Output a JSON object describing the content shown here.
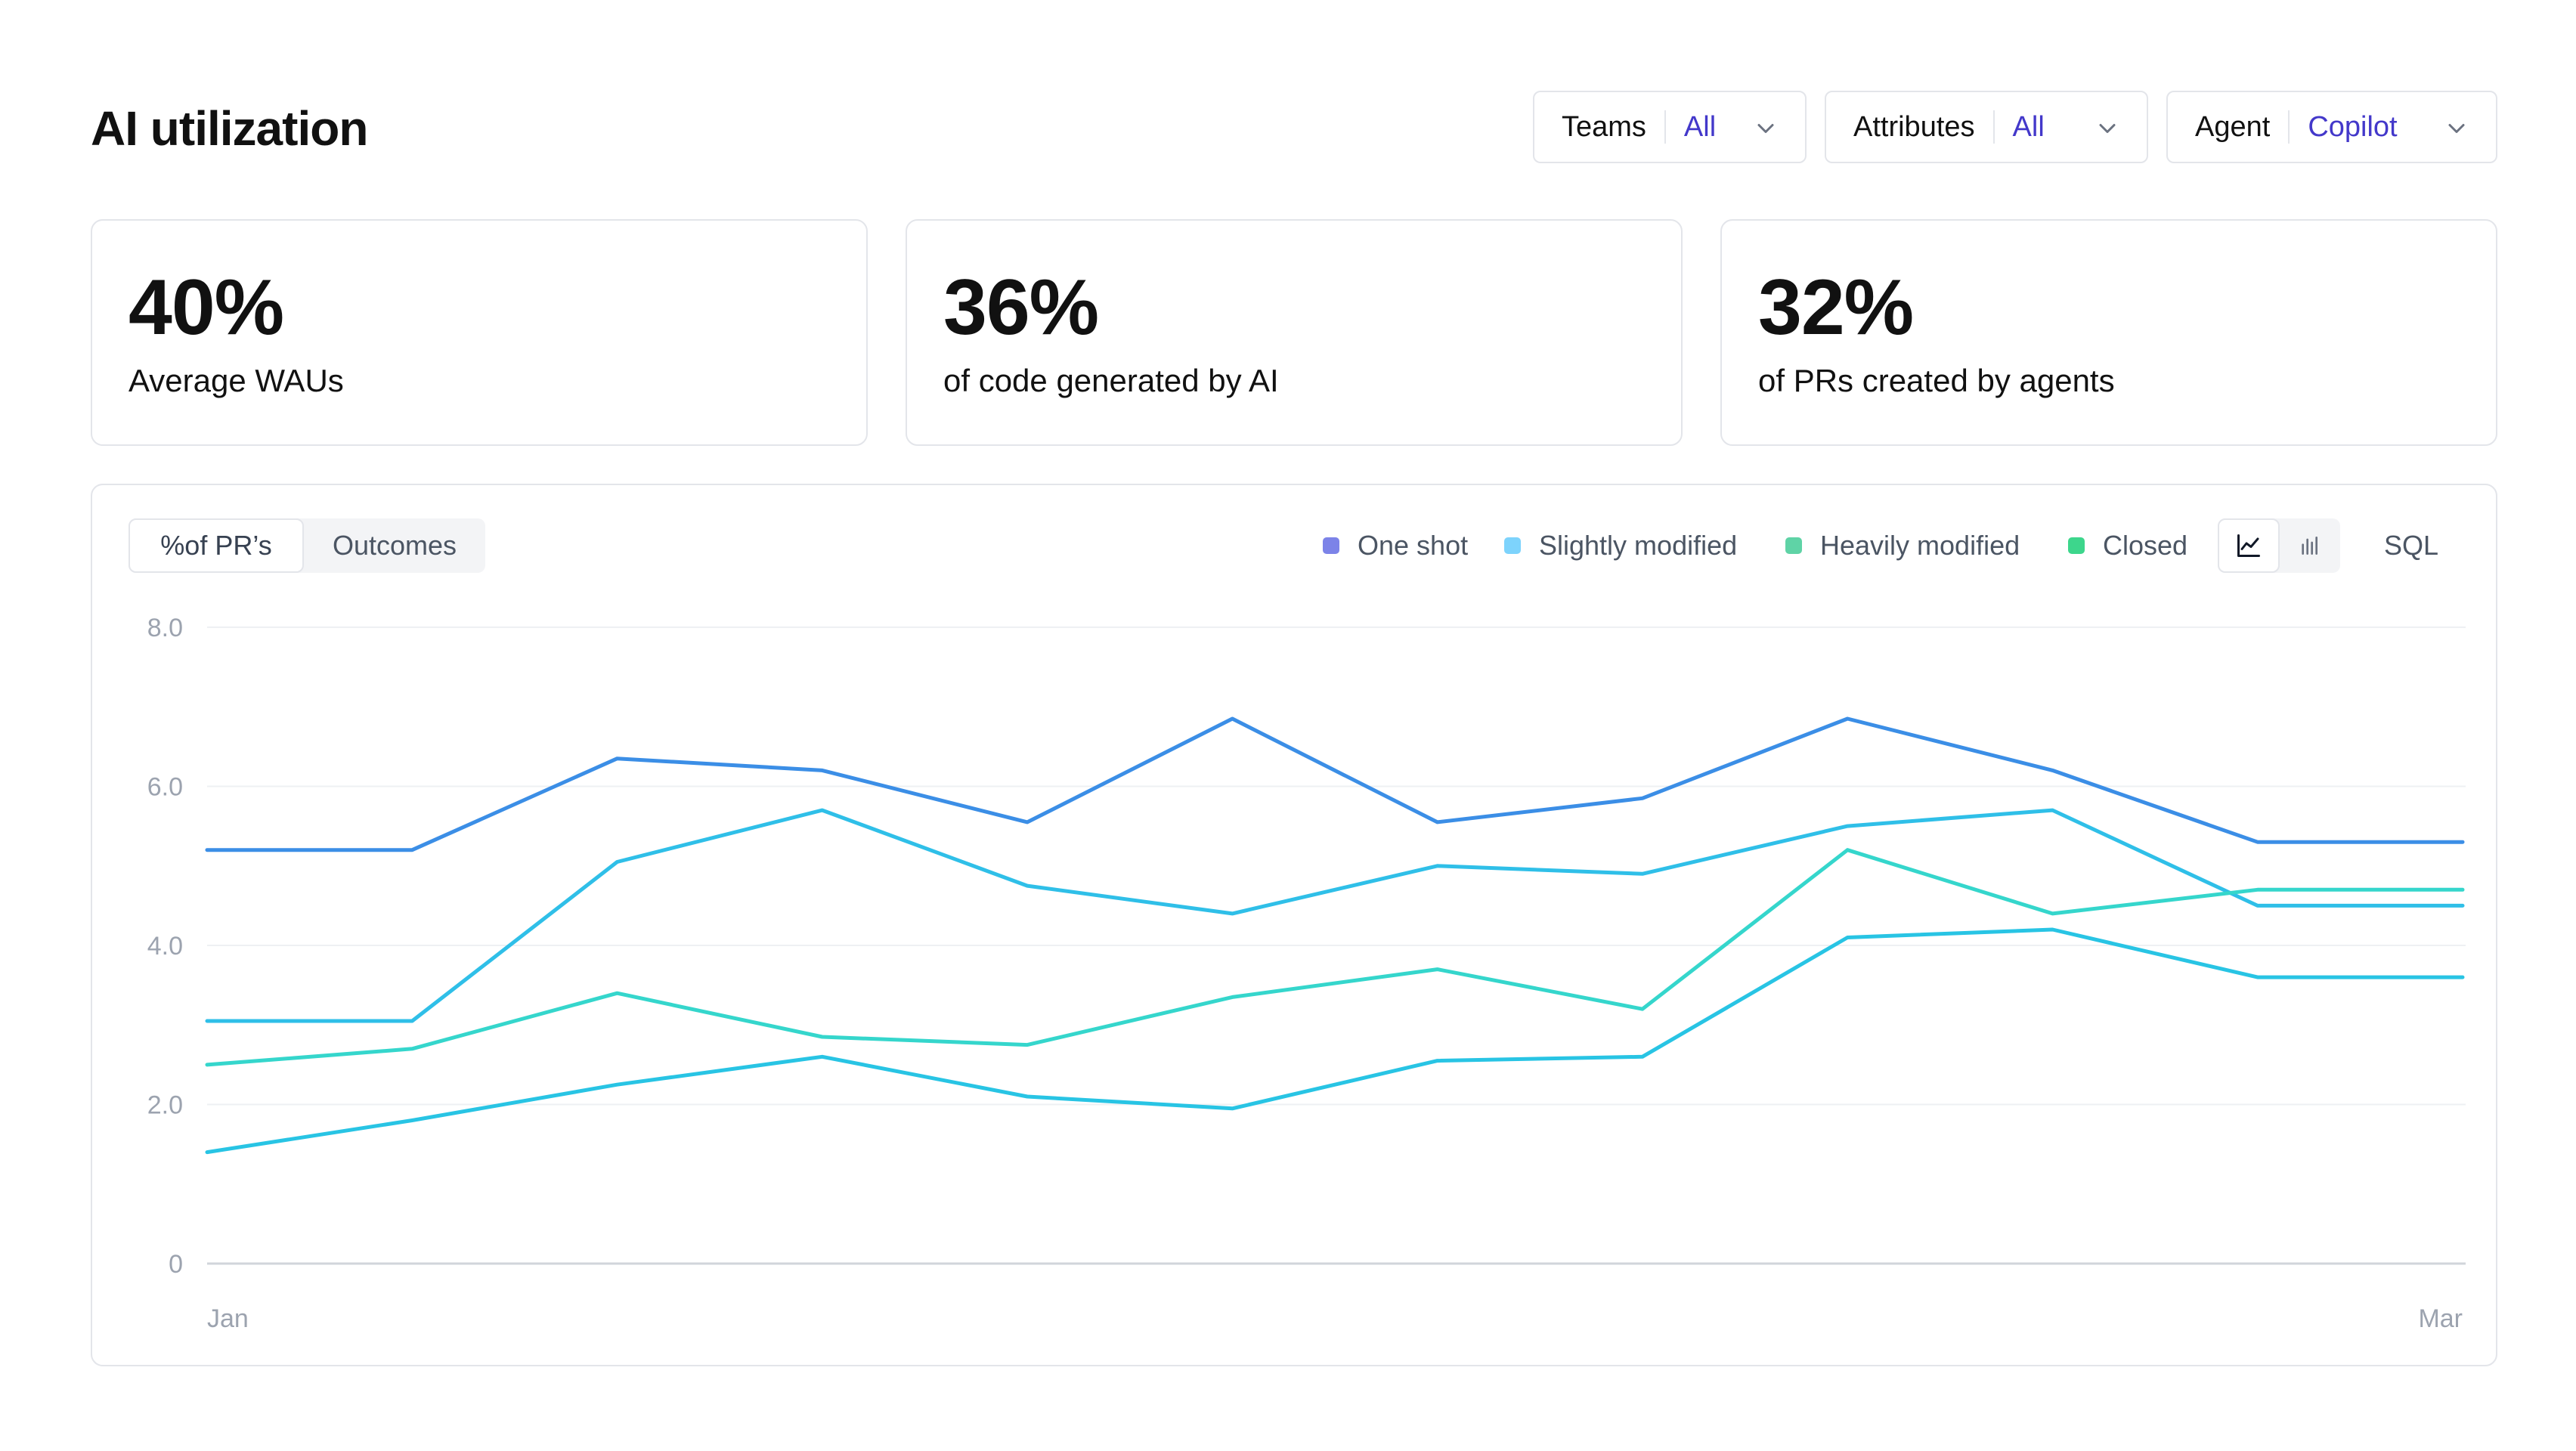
{
  "page": {
    "title": "AI utilization"
  },
  "filters": [
    {
      "label": "Teams",
      "value": "All"
    },
    {
      "label": "Attributes",
      "value": "All"
    },
    {
      "label": "Agent",
      "value": "Copilot"
    }
  ],
  "stats": [
    {
      "value": "40%",
      "label": "Average WAUs"
    },
    {
      "value": "36%",
      "label": "of code generated by AI"
    },
    {
      "value": "32%",
      "label": "of PRs created by agents"
    }
  ],
  "panel": {
    "tabs": [
      "%of PR’s",
      "Outcomes"
    ],
    "active_tab": "%of PR’s",
    "view_toggle": {
      "line_icon": "line-chart-icon",
      "bar_icon": "bar-chart-icon",
      "active": "line"
    },
    "sql_label": "SQL"
  },
  "colors": {
    "accent": "#4338ca",
    "legend_one_shot": "#7c83e8",
    "legend_slightly_modified": "#7dd3fc",
    "legend_heavily_modified": "#5fd3a6",
    "legend_closed": "#3dd68c",
    "series_1": "#3b8ee6",
    "series_2": "#2fbfe8",
    "series_3": "#35d6cc",
    "series_4": "#28c4e4"
  },
  "chart_data": {
    "type": "line",
    "legend": [
      "One shot",
      "Slightly modified",
      "Heavily modified",
      "Closed"
    ],
    "legend_position": "top-right",
    "x_tick_labels": [
      "Jan",
      "Mar"
    ],
    "y_tick_labels": [
      "8.0",
      "6.0",
      "4.0",
      "2.0",
      "0"
    ],
    "y_ticks": [
      8,
      6,
      4,
      2,
      0
    ],
    "ylim": [
      0,
      8
    ],
    "grid": true,
    "x": [
      1,
      2,
      3,
      4,
      5,
      6,
      7,
      8,
      9,
      10,
      11,
      12
    ],
    "series": [
      {
        "color": "#3b8ee6",
        "values": [
          5.2,
          5.2,
          6.35,
          6.2,
          5.55,
          6.85,
          5.55,
          5.85,
          6.85,
          6.2,
          5.3,
          5.3
        ]
      },
      {
        "color": "#2fbfe8",
        "values": [
          3.05,
          3.05,
          5.05,
          5.7,
          4.75,
          4.4,
          5.0,
          4.9,
          5.5,
          5.7,
          4.5,
          4.5
        ]
      },
      {
        "color": "#35d6cc",
        "values": [
          2.5,
          2.7,
          3.4,
          2.85,
          2.75,
          3.35,
          3.7,
          3.2,
          5.2,
          4.4,
          4.7,
          4.7
        ]
      },
      {
        "color": "#28c4e4",
        "values": [
          1.4,
          1.8,
          2.25,
          2.6,
          2.1,
          1.95,
          2.55,
          2.6,
          4.1,
          4.2,
          3.6,
          3.6
        ]
      }
    ]
  }
}
